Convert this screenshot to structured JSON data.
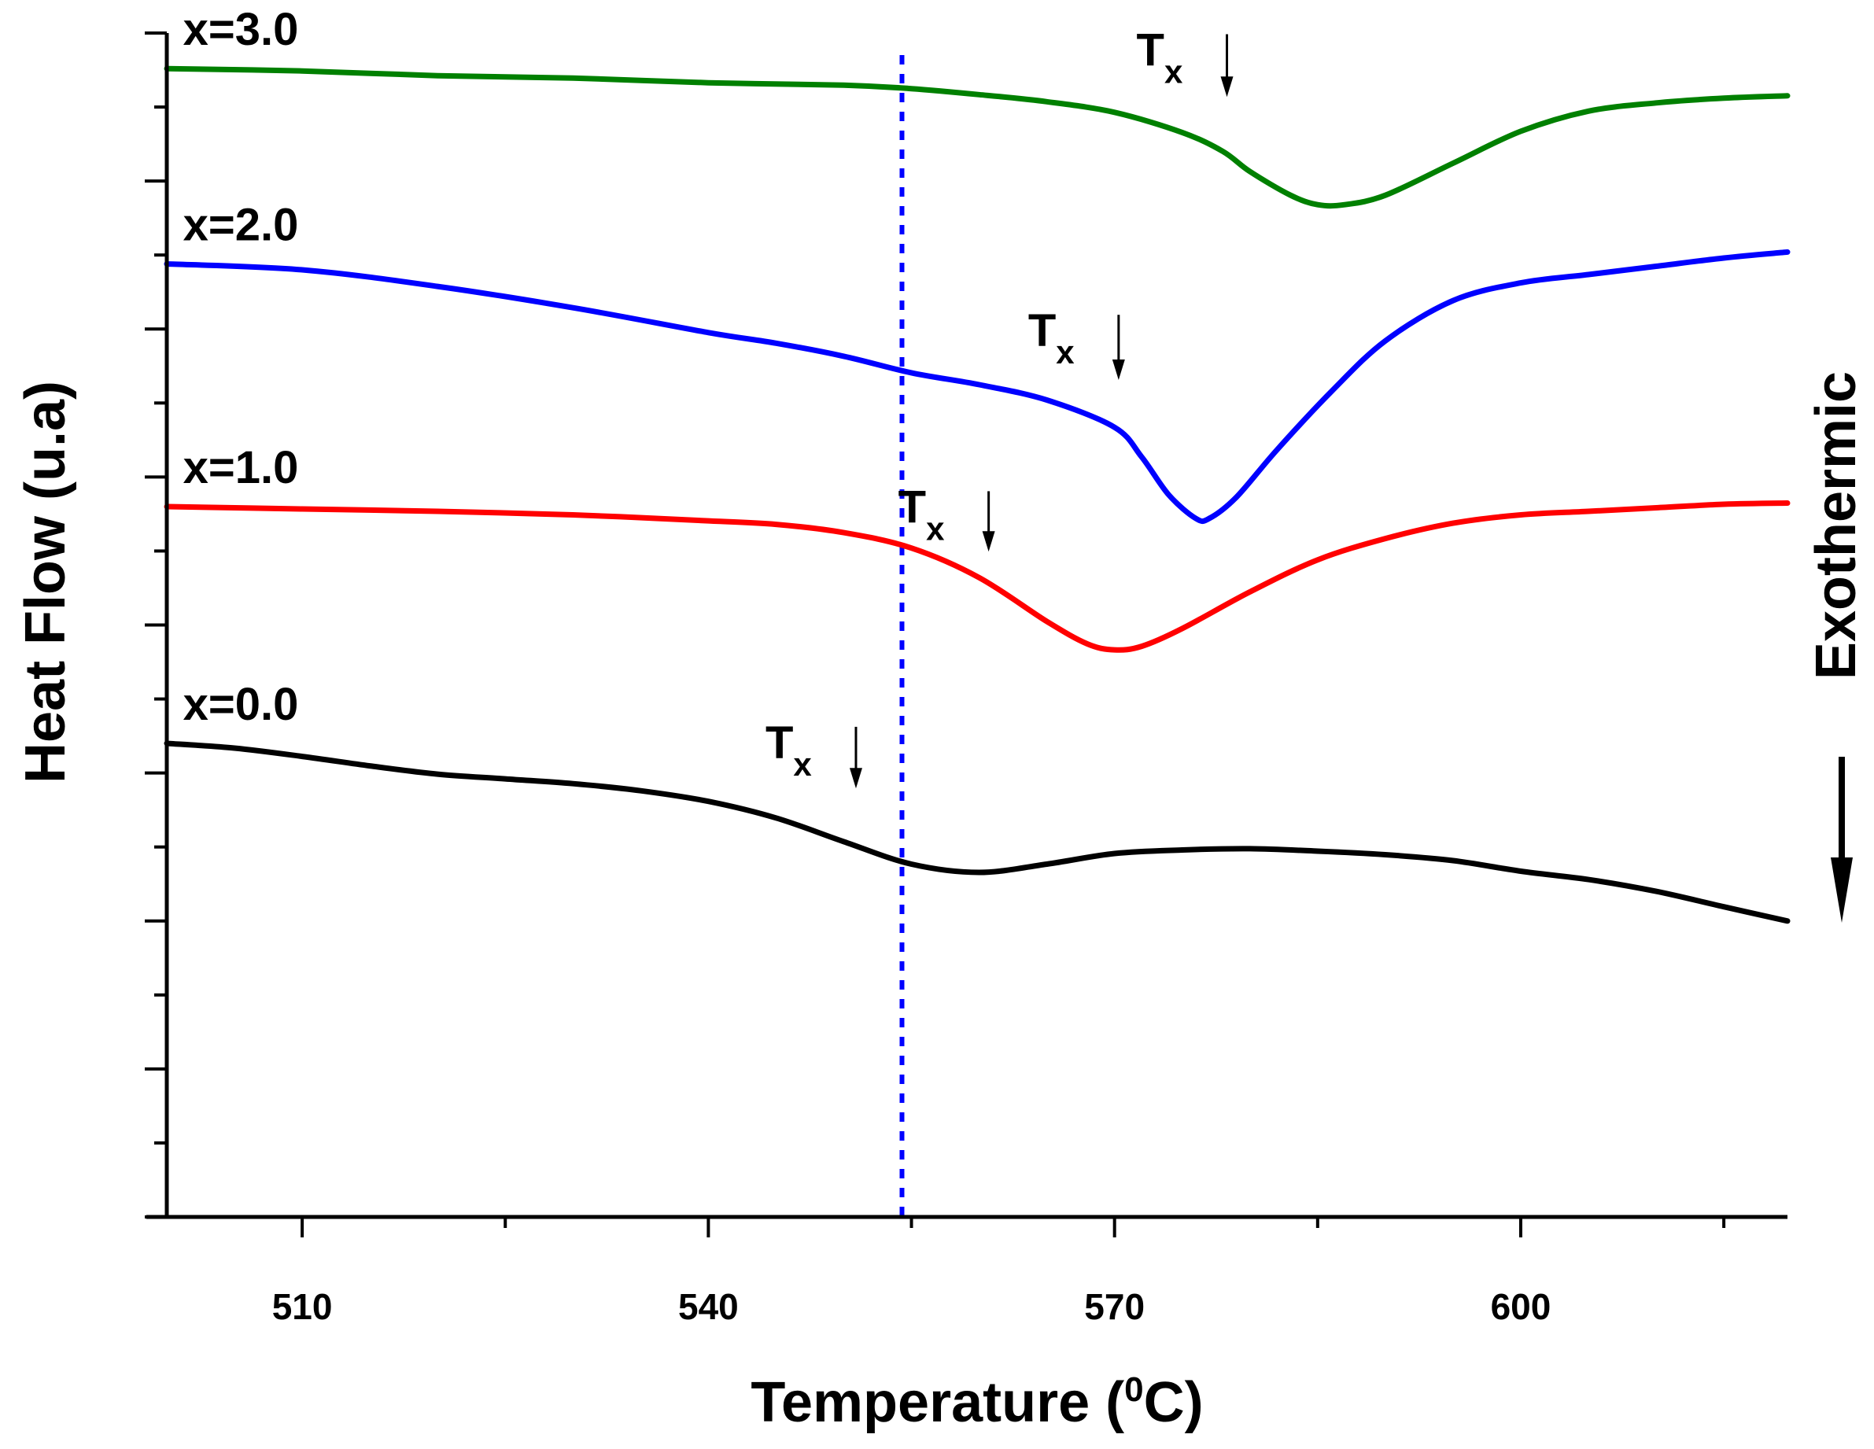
{
  "chart_data": {
    "type": "line",
    "xlabel_prefix": "Temperature (",
    "xlabel_sup": "0",
    "xlabel_suffix": "C)",
    "ylabel": "Heat Flow (u.a)",
    "side_label": "Exothermic",
    "xlim": [
      500,
      619.7
    ],
    "x_ticks": [
      510,
      540,
      570,
      600
    ],
    "x_tick_labels": [
      "510",
      "540",
      "570",
      "600"
    ],
    "y_axis_tick_labels_shown": false,
    "grid": false,
    "legend": "none",
    "vertical_reference_line": {
      "x": 554.3,
      "style": "dotted",
      "color": "#0000ff"
    },
    "direction_arrow": {
      "label": "Exothermic",
      "direction": "down"
    },
    "series": [
      {
        "name": "x=3.0",
        "color": "#008000",
        "x": [
          500,
          510,
          520,
          530,
          540,
          550,
          555,
          560,
          565,
          570,
          575,
          578,
          580,
          583,
          585,
          587,
          590,
          595,
          600,
          605,
          610,
          615,
          619.7
        ],
        "y": [
          9.7,
          9.68,
          9.64,
          9.62,
          9.58,
          9.56,
          9.53,
          9.48,
          9.42,
          9.33,
          9.16,
          9.0,
          8.83,
          8.63,
          8.55,
          8.55,
          8.63,
          8.9,
          9.17,
          9.34,
          9.41,
          9.45,
          9.47
        ]
      },
      {
        "name": "x=2.0",
        "color": "#0000ff",
        "x": [
          500,
          510,
          520,
          530,
          540,
          545,
          550,
          555,
          560,
          565,
          570,
          572,
          574,
          576,
          577,
          579,
          582,
          586,
          590,
          595,
          600,
          605,
          610,
          615,
          619.7
        ],
        "y": [
          8.05,
          8.0,
          7.86,
          7.68,
          7.47,
          7.38,
          7.27,
          7.13,
          7.03,
          6.9,
          6.67,
          6.42,
          6.1,
          5.9,
          5.9,
          6.08,
          6.48,
          6.97,
          7.4,
          7.74,
          7.89,
          7.96,
          8.03,
          8.1,
          8.15
        ]
      },
      {
        "name": "x=1.0",
        "color": "#ff0000",
        "x": [
          500,
          510,
          520,
          530,
          540,
          545,
          550,
          555,
          560,
          565,
          568,
          570,
          572,
          575,
          580,
          585,
          590,
          595,
          600,
          605,
          610,
          615,
          619.7
        ],
        "y": [
          6.0,
          5.98,
          5.96,
          5.93,
          5.88,
          5.85,
          5.78,
          5.65,
          5.4,
          5.03,
          4.84,
          4.79,
          4.82,
          4.97,
          5.28,
          5.55,
          5.73,
          5.86,
          5.93,
          5.96,
          5.99,
          6.02,
          6.03
        ]
      },
      {
        "name": "x=0.0",
        "color": "#000000",
        "x": [
          500,
          505,
          510,
          515,
          520,
          525,
          530,
          535,
          540,
          545,
          550,
          555,
          560,
          565,
          570,
          575,
          580,
          585,
          590,
          595,
          600,
          605,
          610,
          615,
          619.7
        ],
        "y": [
          4.0,
          3.96,
          3.89,
          3.81,
          3.74,
          3.7,
          3.66,
          3.6,
          3.51,
          3.37,
          3.17,
          2.98,
          2.91,
          2.98,
          3.07,
          3.1,
          3.11,
          3.09,
          3.06,
          3.01,
          2.92,
          2.85,
          2.75,
          2.62,
          2.5
        ]
      }
    ],
    "annotations": [
      {
        "label_main": "T",
        "label_sub": "x",
        "series": "x=3.0",
        "arrow_x": 578.3,
        "arrow_y_top": 9.99,
        "arrow_y_bottom": 9.46
      },
      {
        "label_main": "T",
        "label_sub": "x",
        "series": "x=2.0",
        "arrow_x": 570.3,
        "arrow_y_top": 7.62,
        "arrow_y_bottom": 7.07
      },
      {
        "label_main": "T",
        "label_sub": "x",
        "series": "x=1.0",
        "arrow_x": 560.7,
        "arrow_y_top": 6.13,
        "arrow_y_bottom": 5.62
      },
      {
        "label_main": "T",
        "label_sub": "x",
        "series": "x=0.0",
        "arrow_x": 550.9,
        "arrow_y_top": 4.14,
        "arrow_y_bottom": 3.62
      }
    ]
  }
}
